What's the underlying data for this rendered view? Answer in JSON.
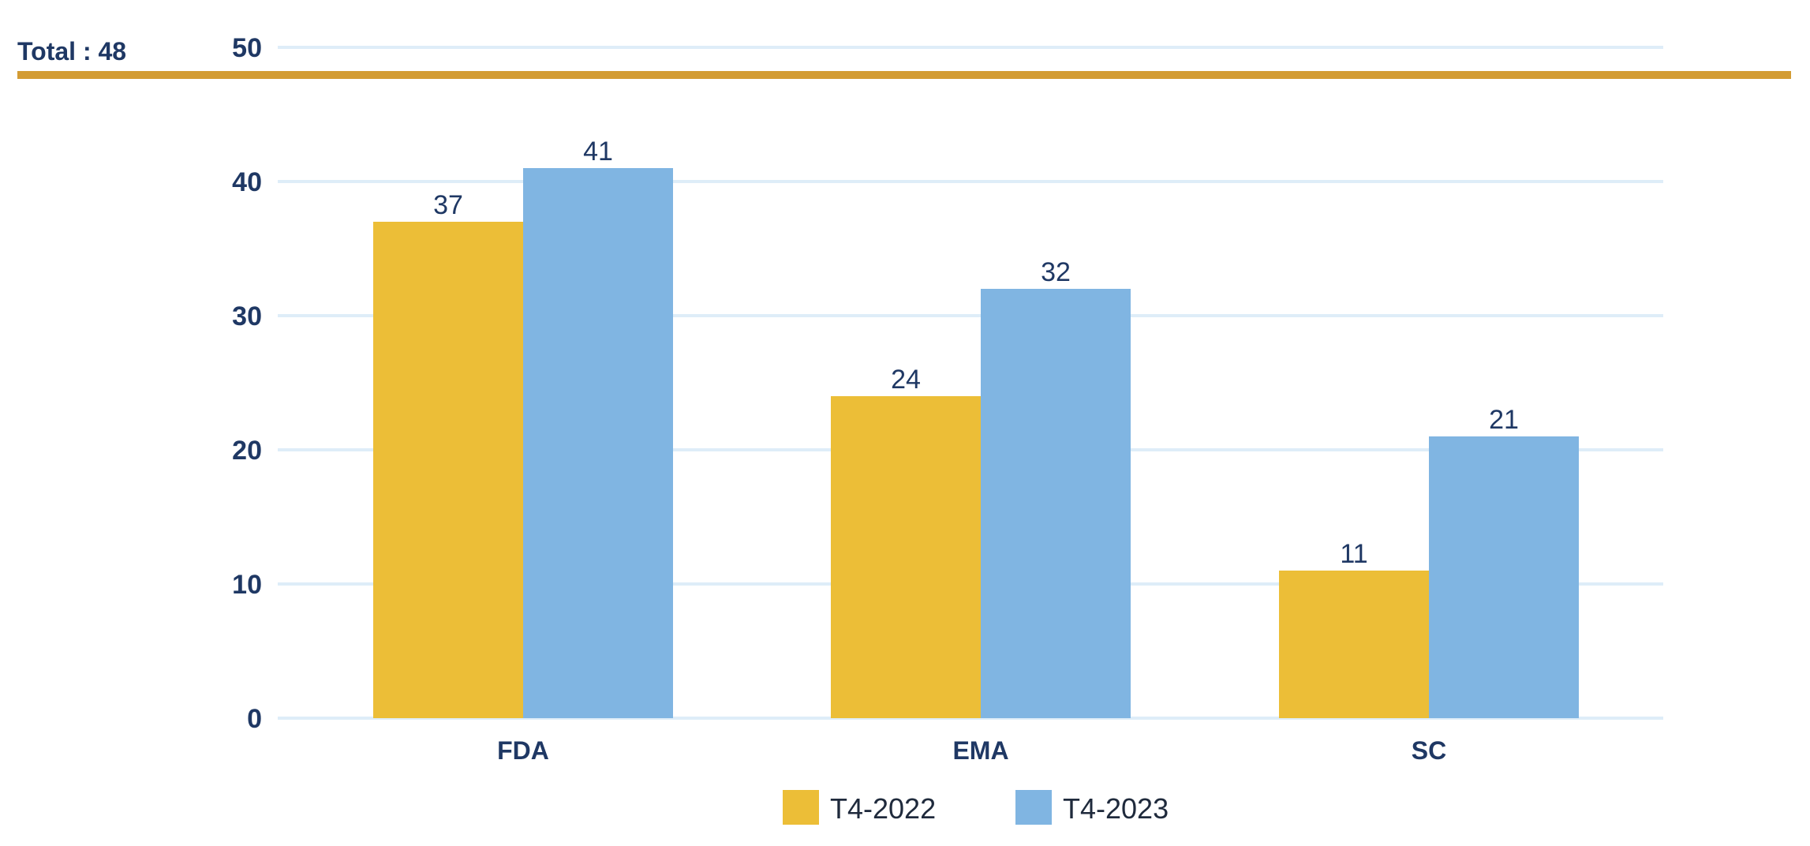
{
  "header": {
    "total_label": "Total : 48",
    "rule_color": "#d39c34"
  },
  "chart_data": {
    "type": "bar",
    "categories": [
      "FDA",
      "EMA",
      "SC"
    ],
    "series": [
      {
        "name": "T4-2022",
        "values": [
          37,
          24,
          11
        ],
        "color": "#ecbe37"
      },
      {
        "name": "T4-2023",
        "values": [
          41,
          32,
          21
        ],
        "color": "#80b5e2"
      }
    ],
    "title": "",
    "xlabel": "",
    "ylabel": "",
    "ylim": [
      0,
      50
    ],
    "yticks": [
      0,
      10,
      20,
      30,
      40,
      50
    ],
    "grid": true,
    "grid_color": "#deedf8",
    "legend": "bottom-center",
    "text_color": "#1f3864"
  }
}
